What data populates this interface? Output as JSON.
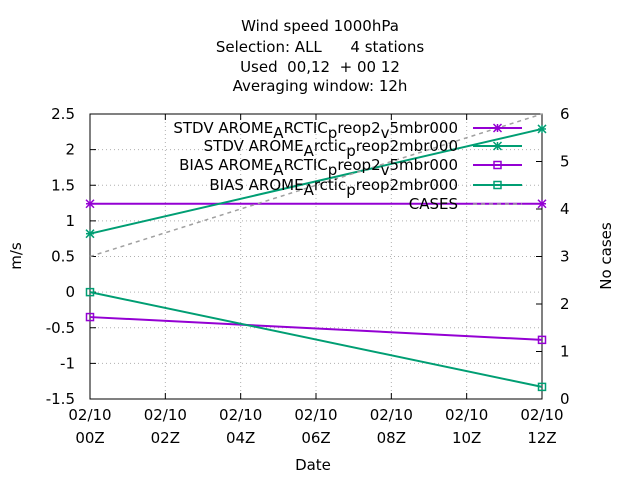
{
  "chart_data": {
    "type": "line",
    "title_lines": [
      "Wind speed 1000hPa",
      "Selection: ALL      4 stations",
      "Used  00,12  + 00 12",
      "Averaging window: 12h"
    ],
    "xlabel": "Date",
    "ylabel": "m/s",
    "y2label": "No cases",
    "x_ticks": [
      {
        "x": 0,
        "line1": "02/10",
        "line2": "00Z"
      },
      {
        "x": 2,
        "line1": "02/10",
        "line2": "02Z"
      },
      {
        "x": 4,
        "line1": "02/10",
        "line2": "04Z"
      },
      {
        "x": 6,
        "line1": "02/10",
        "line2": "06Z"
      },
      {
        "x": 8,
        "line1": "02/10",
        "line2": "08Z"
      },
      {
        "x": 10,
        "line1": "02/10",
        "line2": "10Z"
      },
      {
        "x": 12,
        "line1": "02/10",
        "line2": "12Z"
      }
    ],
    "xlim": [
      0,
      12
    ],
    "ylim": [
      -1.5,
      2.5
    ],
    "y_ticks": [
      -1.5,
      -1,
      -0.5,
      0,
      0.5,
      1,
      1.5,
      2,
      2.5
    ],
    "y_tick_labels": [
      "-1.5",
      "-1",
      "-0.5",
      "0",
      "0.5",
      "1",
      "1.5",
      "2",
      "2.5"
    ],
    "y2lim": [
      0,
      6
    ],
    "y2_ticks": [
      0,
      1,
      2,
      3,
      4,
      5,
      6
    ],
    "y2_tick_labels": [
      "0",
      "1",
      "2",
      "3",
      "4",
      "5",
      "6"
    ],
    "grid": true,
    "legend_position": "top-right",
    "series": [
      {
        "name": "STDV AROME_ARCTIC_preop2_v5mbr000",
        "axis": "y1",
        "color": "#9400d3",
        "marker": "star",
        "dash": false,
        "x": [
          0,
          12
        ],
        "y": [
          1.24,
          1.24
        ]
      },
      {
        "name": "STDV AROME_Arctic_preop2mbr000",
        "axis": "y1",
        "color": "#009e73",
        "marker": "star",
        "dash": false,
        "x": [
          0,
          12
        ],
        "y": [
          0.82,
          2.29
        ]
      },
      {
        "name": "BIAS AROME_ARCTIC_preop2_v5mbr000",
        "axis": "y1",
        "color": "#9400d3",
        "marker": "square",
        "dash": false,
        "x": [
          0,
          12
        ],
        "y": [
          -0.35,
          -0.67
        ]
      },
      {
        "name": "BIAS AROME_Arctic_preop2mbr000",
        "axis": "y1",
        "color": "#009e73",
        "marker": "square",
        "dash": false,
        "x": [
          0,
          12
        ],
        "y": [
          0,
          -1.33
        ]
      },
      {
        "name": "CASES",
        "axis": "y2",
        "color": "#a0a0a0",
        "marker": "none",
        "dash": true,
        "x": [
          0,
          12
        ],
        "y": [
          3,
          6
        ]
      }
    ],
    "legend": [
      {
        "main": "STDV AROME",
        "s1": "A",
        "mid": "RCTIC",
        "s2": "p",
        "mid2": "reop2",
        "s3": "v",
        "end": "5mbr000"
      },
      {
        "main": "STDV AROME",
        "s1": "A",
        "mid": "rctic",
        "s2": "p",
        "mid2": "reop2mbr000",
        "s3": "",
        "end": ""
      },
      {
        "main": "BIAS AROME",
        "s1": "A",
        "mid": "RCTIC",
        "s2": "p",
        "mid2": "reop2",
        "s3": "v",
        "end": "5mbr000"
      },
      {
        "main": "BIAS AROME",
        "s1": "A",
        "mid": "rctic",
        "s2": "p",
        "mid2": "reop2mbr000",
        "s3": "",
        "end": ""
      },
      {
        "main": "CASES",
        "s1": "",
        "mid": "",
        "s2": "",
        "mid2": "",
        "s3": "",
        "end": ""
      }
    ]
  }
}
